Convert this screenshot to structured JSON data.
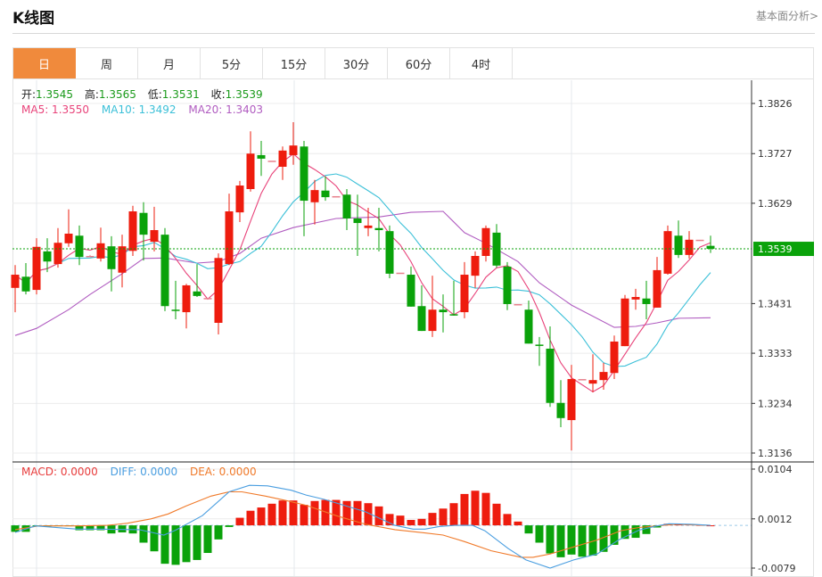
{
  "header": {
    "title": "K线图",
    "link": "基本面分析>"
  },
  "tabs": [
    {
      "label": "日",
      "active": true
    },
    {
      "label": "周"
    },
    {
      "label": "月"
    },
    {
      "label": "5分"
    },
    {
      "label": "15分"
    },
    {
      "label": "30分"
    },
    {
      "label": "60分"
    },
    {
      "label": "4时"
    }
  ],
  "quote": {
    "open_label": "开:",
    "open": "1.3545",
    "high_label": "高:",
    "high": "1.3565",
    "low_label": "低:",
    "low": "1.3531",
    "close_label": "收:",
    "close": "1.3539"
  },
  "ma_legend": {
    "ma5": "MA5: 1.3550",
    "ma10": "MA10: 1.3492",
    "ma20": "MA20: 1.3403"
  },
  "macd_legend": {
    "macd": "MACD: 0.0000",
    "diff": "DIFF: 0.0000",
    "dea": "DEA: 0.0000"
  },
  "colors": {
    "up": "#ee1c0e",
    "down": "#0aa20a",
    "flat": "#e8808c",
    "ma5": "#e8437a",
    "ma10": "#3cc0d8",
    "ma20": "#b05cc0",
    "diff": "#4a9ee0",
    "dea": "#f07a2a",
    "macd_label": "#e83c3c",
    "tab_active": "#f08a3c",
    "last_price": "#0aa20a"
  },
  "chart_data": [
    {
      "type": "candlestick",
      "price_ticks": [
        "1.3826",
        "1.3727",
        "1.3629",
        "1.3431",
        "1.3333",
        "1.3234",
        "1.3136"
      ],
      "ylim": [
        1.3136,
        1.3826
      ],
      "last_price": "1.3539",
      "candles_ohlc": [
        [
          1.3462,
          1.3507,
          1.3414,
          1.3488
        ],
        [
          1.3484,
          1.3511,
          1.3449,
          1.3455
        ],
        [
          1.3458,
          1.356,
          1.3449,
          1.3543
        ],
        [
          1.3534,
          1.356,
          1.3493,
          1.3514
        ],
        [
          1.3509,
          1.358,
          1.3502,
          1.3551
        ],
        [
          1.355,
          1.3617,
          1.3543,
          1.3569
        ],
        [
          1.3565,
          1.3585,
          1.3507,
          1.3523
        ],
        [
          1.3525,
          1.3527,
          1.3523,
          1.3525
        ],
        [
          1.352,
          1.3581,
          1.3514,
          1.355
        ],
        [
          1.3544,
          1.3564,
          1.3455,
          1.3499
        ],
        [
          1.3492,
          1.3567,
          1.3463,
          1.3544
        ],
        [
          1.3535,
          1.3624,
          1.3525,
          1.3613
        ],
        [
          1.361,
          1.3631,
          1.3516,
          1.3567
        ],
        [
          1.3553,
          1.3622,
          1.3534,
          1.3576
        ],
        [
          1.3567,
          1.358,
          1.3416,
          1.3426
        ],
        [
          1.3419,
          1.3476,
          1.34,
          1.3418
        ],
        [
          1.3414,
          1.347,
          1.3382,
          1.3467
        ],
        [
          1.3455,
          1.3509,
          1.3444,
          1.3446
        ],
        [
          1.3442,
          1.3444,
          1.3441,
          1.3442
        ],
        [
          1.3393,
          1.353,
          1.337,
          1.3521
        ],
        [
          1.3509,
          1.3648,
          1.3507,
          1.3613
        ],
        [
          1.3611,
          1.3673,
          1.3592,
          1.3664
        ],
        [
          1.3657,
          1.3771,
          1.3652,
          1.3727
        ],
        [
          1.3724,
          1.3752,
          1.3683,
          1.3717
        ],
        [
          1.3713,
          1.3714,
          1.3712,
          1.3713
        ],
        [
          1.3701,
          1.3741,
          1.3675,
          1.3733
        ],
        [
          1.3724,
          1.3789,
          1.3705,
          1.3743
        ],
        [
          1.3741,
          1.3752,
          1.3564,
          1.3634
        ],
        [
          1.3631,
          1.3675,
          1.3587,
          1.3655
        ],
        [
          1.3654,
          1.3682,
          1.3634,
          1.3641
        ],
        [
          1.3643,
          1.3644,
          1.3642,
          1.3643
        ],
        [
          1.3646,
          1.3657,
          1.3576,
          1.3599
        ],
        [
          1.3599,
          1.3646,
          1.3525,
          1.359
        ],
        [
          1.358,
          1.362,
          1.3564,
          1.3585
        ],
        [
          1.358,
          1.362,
          1.3534,
          1.3576
        ],
        [
          1.3574,
          1.3585,
          1.3481,
          1.349
        ],
        [
          1.3492,
          1.3493,
          1.3491,
          1.3492
        ],
        [
          1.3488,
          1.3504,
          1.3425,
          1.3425
        ],
        [
          1.3426,
          1.3467,
          1.3377,
          1.3377
        ],
        [
          1.3377,
          1.3486,
          1.3365,
          1.3419
        ],
        [
          1.3419,
          1.3449,
          1.3374,
          1.3414
        ],
        [
          1.341,
          1.3476,
          1.3407,
          1.3409
        ],
        [
          1.3414,
          1.3513,
          1.3402,
          1.3488
        ],
        [
          1.3486,
          1.3534,
          1.3462,
          1.3525
        ],
        [
          1.3525,
          1.3585,
          1.3514,
          1.358
        ],
        [
          1.3571,
          1.3588,
          1.3502,
          1.3506
        ],
        [
          1.3504,
          1.3513,
          1.3418,
          1.343
        ],
        [
          1.343,
          1.3431,
          1.3429,
          1.343
        ],
        [
          1.3419,
          1.3437,
          1.3352,
          1.3352
        ],
        [
          1.335,
          1.3365,
          1.3308,
          1.3349
        ],
        [
          1.3342,
          1.3386,
          1.3227,
          1.3235
        ],
        [
          1.3235,
          1.328,
          1.3187,
          1.3205
        ],
        [
          1.3201,
          1.331,
          1.3141,
          1.3282
        ],
        [
          1.3282,
          1.3283,
          1.3281,
          1.3282
        ],
        [
          1.3273,
          1.3331,
          1.3256,
          1.328
        ],
        [
          1.328,
          1.3314,
          1.3261,
          1.3296
        ],
        [
          1.3294,
          1.3368,
          1.3282,
          1.3356
        ],
        [
          1.3347,
          1.3448,
          1.3347,
          1.3441
        ],
        [
          1.3439,
          1.346,
          1.3419,
          1.3444
        ],
        [
          1.3441,
          1.3476,
          1.34,
          1.343
        ],
        [
          1.3423,
          1.3523,
          1.3423,
          1.3497
        ],
        [
          1.349,
          1.3585,
          1.3488,
          1.3574
        ],
        [
          1.3565,
          1.3595,
          1.3521,
          1.3527
        ],
        [
          1.3527,
          1.3574,
          1.352,
          1.3557
        ],
        [
          1.3557,
          1.3558,
          1.3556,
          1.3557
        ],
        [
          1.3545,
          1.3565,
          1.3531,
          1.3539
        ]
      ],
      "ma20_points": [
        [
          0,
          1.3368
        ],
        [
          2,
          1.3382
        ],
        [
          5,
          1.3419
        ],
        [
          7,
          1.3449
        ],
        [
          10,
          1.349
        ],
        [
          12,
          1.352
        ],
        [
          14,
          1.3521
        ],
        [
          17,
          1.3511
        ],
        [
          19,
          1.3514
        ],
        [
          21,
          1.353
        ],
        [
          23,
          1.356
        ],
        [
          26,
          1.3581
        ],
        [
          30,
          1.3599
        ],
        [
          34,
          1.3602
        ],
        [
          37,
          1.3611
        ],
        [
          40,
          1.3613
        ],
        [
          42,
          1.3571
        ],
        [
          44,
          1.355
        ],
        [
          47,
          1.3514
        ],
        [
          49,
          1.3472
        ],
        [
          52,
          1.3428
        ],
        [
          56,
          1.3384
        ],
        [
          58,
          1.3386
        ],
        [
          60,
          1.3393
        ],
        [
          62,
          1.3402
        ],
        [
          65,
          1.3403
        ]
      ]
    },
    {
      "type": "bar",
      "macd_ticks": [
        "0.0104",
        "0.0012",
        "-0.0079"
      ],
      "ylim": [
        -0.0079,
        0.0104
      ],
      "histogram": [
        -0.0012,
        -0.0012,
        -0.0002,
        -0.0002,
        -0.0001,
        -0.0001,
        -0.0009,
        -0.0009,
        -0.0009,
        -0.0015,
        -0.0013,
        -0.0015,
        -0.0032,
        -0.0048,
        -0.0071,
        -0.0073,
        -0.0068,
        -0.0064,
        -0.0051,
        -0.0026,
        -0.0003,
        0.0014,
        0.0027,
        0.0033,
        0.004,
        0.0046,
        0.0046,
        0.0038,
        0.0045,
        0.0047,
        0.0047,
        0.0045,
        0.0045,
        0.0041,
        0.0035,
        0.0021,
        0.0018,
        0.001,
        0.0012,
        0.0023,
        0.0031,
        0.0041,
        0.0058,
        0.0064,
        0.006,
        0.004,
        0.0021,
        0.0007,
        -0.0015,
        -0.0032,
        -0.0052,
        -0.0059,
        -0.0054,
        -0.0058,
        -0.0056,
        -0.0049,
        -0.0036,
        -0.0025,
        -0.0023,
        -0.0016,
        -0.0004,
        0.0003,
        0.0002,
        0.0002,
        0.0001,
        0.0
      ],
      "diff_points": [
        [
          0,
          -0.0013
        ],
        [
          1.9,
          -0.0001
        ],
        [
          5.8,
          -0.0007
        ],
        [
          7.75,
          -0.0007
        ],
        [
          11.6,
          -0.0008
        ],
        [
          13.9,
          -0.0018
        ],
        [
          15,
          -0.0009
        ],
        [
          17.5,
          0.0018
        ],
        [
          20,
          0.0062
        ],
        [
          21.9,
          0.0074
        ],
        [
          23.6,
          0.0073
        ],
        [
          25.8,
          0.0065
        ],
        [
          27.2,
          0.0056
        ],
        [
          28.9,
          0.0048
        ],
        [
          32.75,
          0.0025
        ],
        [
          35.5,
          0.0
        ],
        [
          37.2,
          -0.0007
        ],
        [
          38.3,
          -0.0007
        ],
        [
          39.7,
          -0.0002
        ],
        [
          41.1,
          0.0
        ],
        [
          42.75,
          0.0
        ],
        [
          43.9,
          -0.001
        ],
        [
          46.1,
          -0.0043
        ],
        [
          47.75,
          -0.0064
        ],
        [
          50,
          -0.0079
        ],
        [
          52.2,
          -0.0064
        ],
        [
          54.4,
          -0.0053
        ],
        [
          56.4,
          -0.0027
        ],
        [
          58.3,
          -0.0009
        ],
        [
          60,
          -0.0001
        ],
        [
          61.1,
          0.0003
        ],
        [
          63.3,
          0.0002
        ],
        [
          65,
          0.0
        ]
      ],
      "dea_points": [
        [
          0,
          -0.0008
        ],
        [
          2.2,
          -0.0001
        ],
        [
          5.8,
          -0.0001
        ],
        [
          8.6,
          0.0
        ],
        [
          10.5,
          0.0004
        ],
        [
          12.7,
          0.0012
        ],
        [
          14.3,
          0.0021
        ],
        [
          16,
          0.0036
        ],
        [
          18.3,
          0.0054
        ],
        [
          20,
          0.0062
        ],
        [
          21.2,
          0.0062
        ],
        [
          23.4,
          0.0054
        ],
        [
          25.3,
          0.0046
        ],
        [
          27.2,
          0.0037
        ],
        [
          30,
          0.0018
        ],
        [
          32.75,
          0.0002
        ],
        [
          35.5,
          -0.0008
        ],
        [
          38.3,
          -0.0014
        ],
        [
          40,
          -0.0018
        ],
        [
          42,
          -0.003
        ],
        [
          44.5,
          -0.0047
        ],
        [
          47.3,
          -0.0059
        ],
        [
          48.4,
          -0.0059
        ],
        [
          50,
          -0.0053
        ],
        [
          52.2,
          -0.004
        ],
        [
          54.4,
          -0.0027
        ],
        [
          56.6,
          -0.001
        ],
        [
          58.3,
          -0.0004
        ],
        [
          60,
          -0.0001
        ],
        [
          61.6,
          0.0002
        ],
        [
          65,
          0.0
        ]
      ]
    }
  ]
}
